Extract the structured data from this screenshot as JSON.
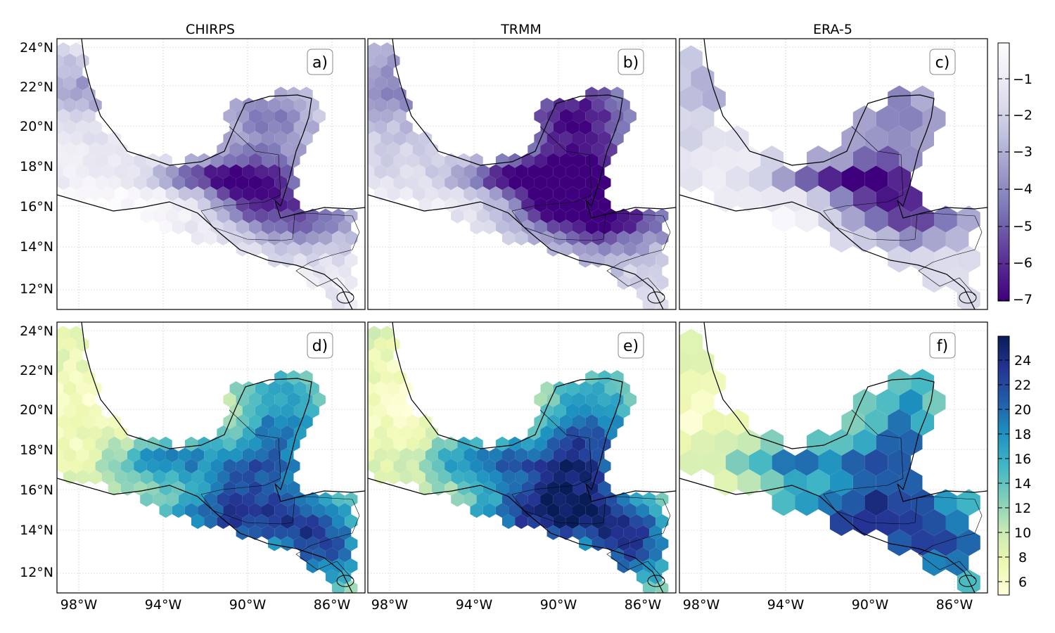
{
  "figure": {
    "column_titles": [
      "CHIRPS",
      "TRMM",
      "ERA-5"
    ],
    "panel_letters": [
      "a)",
      "b)",
      "c)",
      "d)",
      "e)",
      "f)"
    ],
    "lat_tick_labels": [
      "24°N",
      "22°N",
      "20°N",
      "18°N",
      "16°N",
      "14°N",
      "12°N"
    ],
    "lon_tick_labels": [
      "98°W",
      "94°W",
      "90°W",
      "86°W"
    ],
    "colorbar_top": {
      "colormap": "Purples_r",
      "colors": [
        "#3f007d",
        "#54278f",
        "#6a51a3",
        "#807dba",
        "#9e9ac8",
        "#bcbddc",
        "#dadaeb",
        "#efedf5",
        "#fcfbfd"
      ],
      "tick_labels": [
        "−1",
        "−2",
        "−3",
        "−4",
        "−5",
        "−6",
        "−7"
      ],
      "range": [
        -7.1,
        0.1
      ]
    },
    "colorbar_bottom": {
      "colormap": "YlGnBu",
      "colors": [
        "#ffffd9",
        "#edf8b1",
        "#c7e9b4",
        "#7fcdbb",
        "#41b6c4",
        "#1d91c0",
        "#225ea8",
        "#253494",
        "#081d58"
      ],
      "tick_labels": [
        "24",
        "22",
        "20",
        "18",
        "16",
        "14",
        "12",
        "10",
        "8",
        "6"
      ],
      "range": [
        5,
        26
      ]
    }
  }
}
